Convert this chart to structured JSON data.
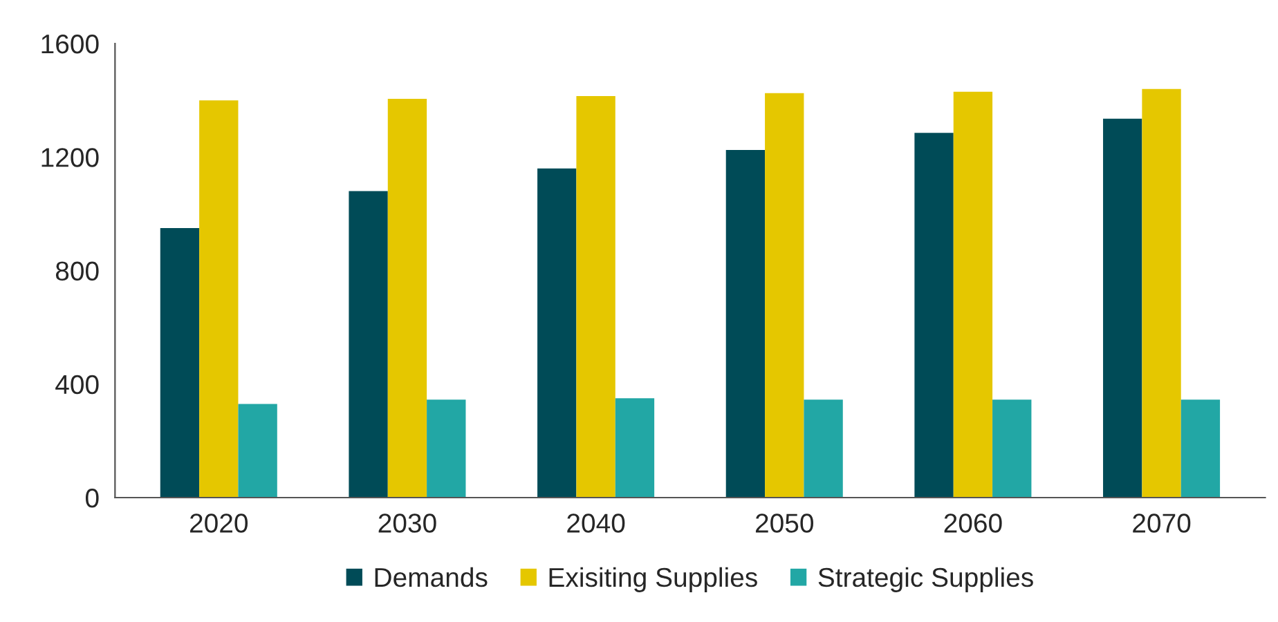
{
  "chart_data": {
    "type": "bar",
    "categories": [
      "2020",
      "2030",
      "2040",
      "2050",
      "2060",
      "2070"
    ],
    "series": [
      {
        "name": "Demands",
        "color": "#004b57",
        "values": [
          950,
          1080,
          1160,
          1225,
          1285,
          1335
        ]
      },
      {
        "name": "Exisiting Supplies",
        "color": "#e5c700",
        "values": [
          1400,
          1405,
          1415,
          1425,
          1430,
          1440
        ]
      },
      {
        "name": "Strategic Supplies",
        "color": "#22a7a5",
        "values": [
          330,
          345,
          350,
          345,
          345,
          345
        ]
      }
    ],
    "ylim": [
      0,
      1600
    ],
    "yticks": [
      0,
      400,
      800,
      1200,
      1600
    ],
    "grid": false,
    "legend": "bottom"
  }
}
